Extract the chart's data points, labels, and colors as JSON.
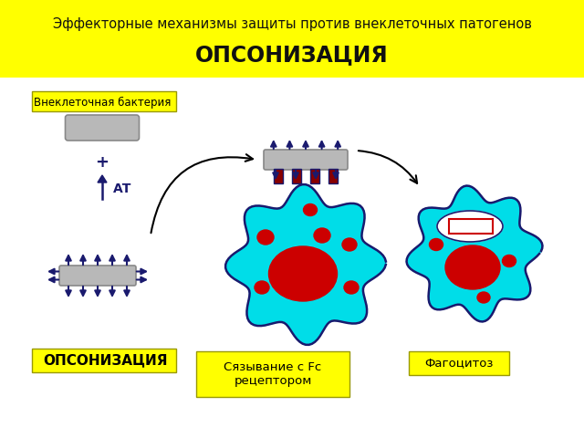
{
  "title_line1": "Эффекторные механизмы защиты против внеклеточных патогенов",
  "title_line2": "ОПСОНИЗАЦИЯ",
  "title_bg": "#ffff00",
  "title_text_color": "#111111",
  "bg_color": "#ffffff",
  "label_bacteria": "Внеклеточная бактерия",
  "label_opsonization": "ОПСОНИЗАЦИЯ",
  "label_binding": "Сязывание с Fc\nрецептором",
  "label_phagocytosis": "Фагоцитоз",
  "label_at": "АТ",
  "label_plus": "+",
  "cyan_color": "#00dde8",
  "dark_navy": "#1a1a6e",
  "red_color": "#cc0000",
  "gray_rod": "#b8b8b8",
  "yellow": "#ffff00",
  "black": "#000000",
  "dark_red": "#880000",
  "white": "#ffffff"
}
